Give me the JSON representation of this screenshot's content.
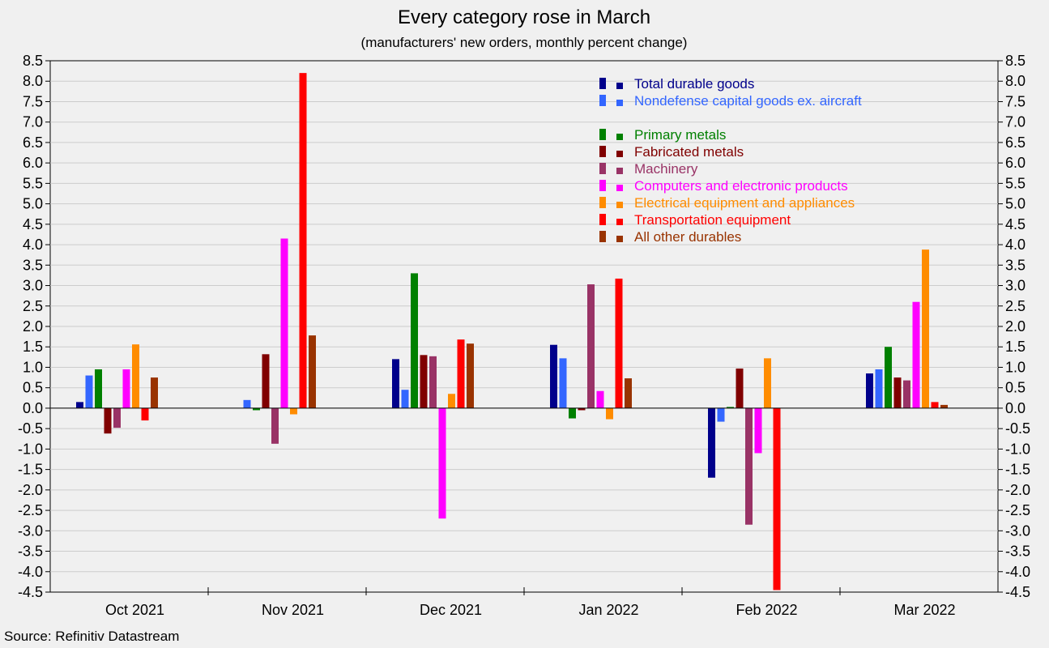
{
  "chart_data": {
    "type": "bar",
    "title": "Every category rose in March",
    "subtitle": "(manufacturers' new orders, monthly percent change)",
    "source": "Source: Refinitiv Datastream",
    "categories": [
      "Oct 2021",
      "Nov 2021",
      "Dec 2021",
      "Jan 2022",
      "Feb 2022",
      "Mar 2022"
    ],
    "ylim": [
      -4.5,
      8.5
    ],
    "ytick_step": 0.5,
    "grid": true,
    "legend_position": "top-center",
    "series": [
      {
        "name": "Total durable goods",
        "color": "#00008b",
        "values": [
          0.15,
          0.0,
          1.2,
          1.55,
          -1.7,
          0.85
        ]
      },
      {
        "name": "Nondefense capital goods ex. aircraft",
        "color": "#3366ff",
        "values": [
          0.8,
          0.2,
          0.45,
          1.22,
          -0.33,
          0.95
        ]
      },
      {
        "name": "Primary metals",
        "color": "#008000",
        "values": [
          0.95,
          -0.05,
          3.3,
          -0.25,
          0.03,
          1.5
        ],
        "legend_gap_before": true
      },
      {
        "name": "Fabricated metals",
        "color": "#800000",
        "values": [
          -0.62,
          1.32,
          1.3,
          -0.05,
          0.97,
          0.75
        ]
      },
      {
        "name": "Machinery",
        "color": "#993366",
        "values": [
          -0.48,
          -0.87,
          1.27,
          3.03,
          -2.85,
          0.68
        ]
      },
      {
        "name": "Computers and electronic products",
        "color": "#ff00ff",
        "values": [
          0.95,
          4.15,
          -2.7,
          0.42,
          -1.1,
          2.6
        ]
      },
      {
        "name": "Electrical equipment and appliances",
        "color": "#ff8c00",
        "values": [
          1.56,
          -0.15,
          0.35,
          -0.27,
          1.22,
          3.88
        ]
      },
      {
        "name": "Transportation equipment",
        "color": "#ff0000",
        "values": [
          -0.3,
          8.2,
          1.68,
          3.17,
          -4.45,
          0.15
        ]
      },
      {
        "name": "All other durables",
        "color": "#993300",
        "values": [
          0.75,
          1.78,
          1.58,
          0.73,
          0.0,
          0.08
        ]
      }
    ]
  }
}
